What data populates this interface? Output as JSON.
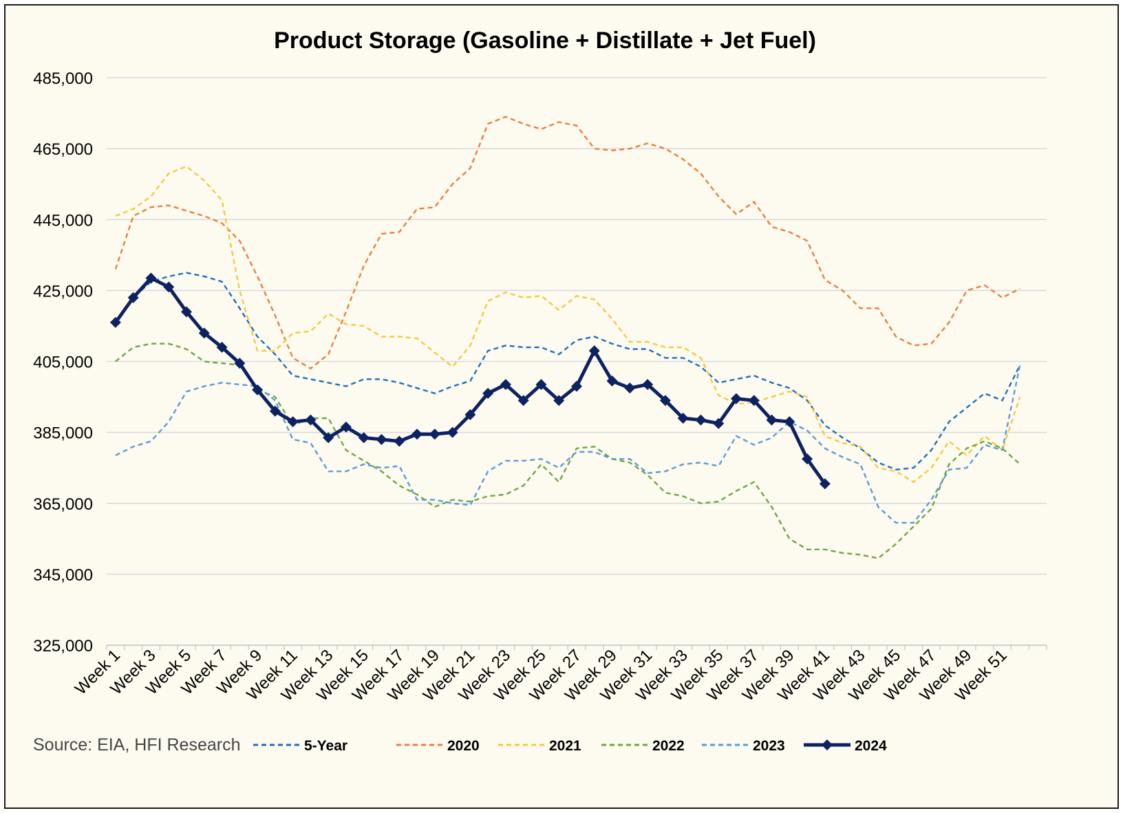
{
  "chart_data": {
    "type": "line",
    "title": "Product Storage (Gasoline + Distillate + Jet Fuel)",
    "source": "Source: EIA, HFI Research",
    "ylim": [
      325000,
      485000
    ],
    "yticks": [
      325000,
      345000,
      365000,
      385000,
      405000,
      425000,
      445000,
      465000,
      485000
    ],
    "ytick_labels": [
      "325,000",
      "345,000",
      "365,000",
      "385,000",
      "405,000",
      "425,000",
      "445,000",
      "465,000",
      "485,000"
    ],
    "x_tick_labels": [
      "Week 1",
      "Week 3",
      "Week 5",
      "Week 7",
      "Week 9",
      "Week 11",
      "Week 13",
      "Week 15",
      "Week 17",
      "Week 19",
      "Week 21",
      "Week 23",
      "Week 25",
      "Week 27",
      "Week 29",
      "Week 31",
      "Week 33",
      "Week 35",
      "Week 37",
      "Week 39",
      "Week 41",
      "Week 43",
      "Week 45",
      "Week 47",
      "Week 49",
      "Week 51"
    ],
    "n_weeks": 53,
    "grid": "horizontal",
    "legend_position": "bottom",
    "series": [
      {
        "name": "5-Year",
        "color": "#1f6fb5",
        "style": "dashed",
        "values": [
          416000,
          423000,
          427500,
          429000,
          430000,
          429000,
          427500,
          420000,
          412000,
          407000,
          401000,
          400000,
          399000,
          398000,
          400000,
          400000,
          399000,
          397500,
          396000,
          398000,
          399500,
          408000,
          409500,
          409000,
          409000,
          407000,
          411000,
          412000,
          410000,
          408500,
          408500,
          406000,
          406000,
          403500,
          399000,
          400000,
          401000,
          399000,
          397500,
          394000,
          387000,
          383500,
          380500,
          376500,
          374500,
          375000,
          380000,
          388000,
          392000,
          396000,
          394000,
          404000
        ]
      },
      {
        "name": "2020",
        "color": "#ec7f3a",
        "style": "dashed",
        "values": [
          431000,
          446000,
          448500,
          449000,
          447500,
          446000,
          444000,
          439000,
          429000,
          418000,
          406000,
          403000,
          407000,
          419000,
          432000,
          441000,
          441500,
          448000,
          448500,
          455000,
          459500,
          472000,
          474000,
          472000,
          470500,
          472500,
          471500,
          465000,
          464500,
          465000,
          466500,
          465000,
          462000,
          458000,
          451500,
          446500,
          450000,
          443000,
          441500,
          439000,
          428000,
          425000,
          420000,
          420000,
          412000,
          409500,
          410000,
          416000,
          425000,
          426500,
          423000,
          425500
        ]
      },
      {
        "name": "2021",
        "color": "#f6c93e",
        "style": "dashed",
        "values": [
          446000,
          448000,
          451500,
          458000,
          460000,
          456000,
          450500,
          425000,
          408000,
          408000,
          413000,
          413500,
          418500,
          415500,
          415000,
          412000,
          412000,
          411500,
          407500,
          403500,
          409500,
          422000,
          424500,
          423000,
          423500,
          419500,
          423500,
          422500,
          417000,
          410500,
          410500,
          409000,
          409000,
          406000,
          395500,
          393000,
          393500,
          395000,
          396500,
          395000,
          384000,
          382000,
          381000,
          375000,
          374000,
          371000,
          375000,
          382500,
          378500,
          384000,
          380000,
          395000
        ]
      },
      {
        "name": "2022",
        "color": "#6fa641",
        "style": "dashed",
        "values": [
          405000,
          409000,
          410000,
          410000,
          408500,
          405000,
          404500,
          404000,
          397000,
          395000,
          387000,
          389000,
          389000,
          380000,
          377000,
          374000,
          370000,
          367500,
          364000,
          366000,
          365500,
          367000,
          367500,
          370000,
          376000,
          371000,
          380500,
          381000,
          377500,
          376500,
          373000,
          368000,
          367000,
          365000,
          365500,
          368500,
          371000,
          364000,
          355000,
          352000,
          352000,
          351000,
          350500,
          349500,
          353500,
          358500,
          363500,
          376000,
          380500,
          382500,
          380500,
          376000
        ]
      },
      {
        "name": "2023",
        "color": "#5b9bd5",
        "style": "dashed",
        "values": [
          378500,
          381000,
          382500,
          388000,
          396500,
          398000,
          399000,
          398500,
          398000,
          394000,
          383000,
          382000,
          374000,
          374000,
          376000,
          375000,
          375500,
          366000,
          366000,
          365000,
          364500,
          374000,
          377000,
          377000,
          377500,
          375000,
          379500,
          379500,
          377500,
          377500,
          373500,
          374000,
          376000,
          376500,
          375500,
          384000,
          381500,
          383500,
          388000,
          385500,
          380500,
          378000,
          376000,
          364000,
          359500,
          359500,
          366000,
          374500,
          375000,
          381500,
          380000,
          404000
        ]
      },
      {
        "name": "2024",
        "color": "#0d2260",
        "style": "solid-marker",
        "values": [
          416000,
          423000,
          428500,
          426000,
          419000,
          413000,
          409000,
          404500,
          397000,
          391000,
          388000,
          388500,
          383500,
          386500,
          383500,
          383000,
          382500,
          384500,
          384500,
          385000,
          390000,
          396000,
          398500,
          394000,
          398500,
          394000,
          398000,
          408000,
          399500,
          397500,
          398500,
          394000,
          389000,
          388500,
          387500,
          394500,
          394000,
          388500,
          388000,
          377500,
          370500
        ]
      }
    ]
  }
}
